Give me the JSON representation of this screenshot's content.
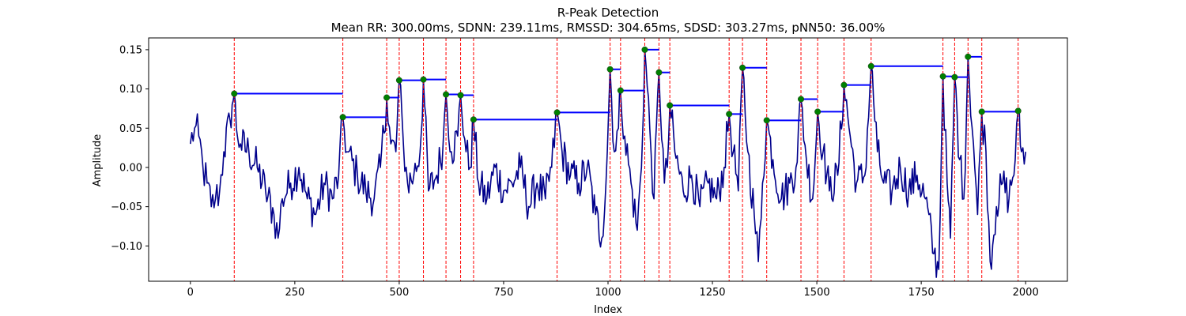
{
  "chart_data": {
    "type": "line",
    "title": "R-Peak Detection",
    "subtitle": "Mean RR: 300.00ms, SDNN: 239.11ms, RMSSD: 304.65ms, SDSD: 303.27ms, pNN50: 36.00%",
    "xlabel": "Index",
    "ylabel": "Amplitude",
    "xlim": [
      -100,
      2100
    ],
    "ylim": [
      -0.145,
      0.165
    ],
    "xticks": [
      0,
      250,
      500,
      750,
      1000,
      1250,
      1500,
      1750,
      2000
    ],
    "yticks": [
      -0.1,
      -0.05,
      0.0,
      0.05,
      0.1,
      0.15
    ],
    "grid": false,
    "colors": {
      "signal": "#00008b",
      "peak_marker": "#008000",
      "peak_line": "#ff0000",
      "rr_segment": "#0000ff"
    },
    "signal_baseline": [
      [
        0,
        0.03
      ],
      [
        10,
        0.05
      ],
      [
        20,
        0.04
      ],
      [
        30,
        0.0
      ],
      [
        40,
        -0.02
      ],
      [
        50,
        -0.05
      ],
      [
        60,
        -0.04
      ],
      [
        70,
        -0.03
      ],
      [
        80,
        0.02
      ],
      [
        95,
        0.06
      ],
      [
        100,
        0.08
      ],
      [
        105,
        0.094
      ],
      [
        110,
        0.05
      ],
      [
        120,
        0.03
      ],
      [
        140,
        0.02
      ],
      [
        160,
        0.0
      ],
      [
        180,
        -0.03
      ],
      [
        200,
        -0.06
      ],
      [
        210,
        -0.09
      ],
      [
        220,
        -0.04
      ],
      [
        240,
        -0.02
      ],
      [
        260,
        0.0
      ],
      [
        280,
        -0.04
      ],
      [
        300,
        -0.06
      ],
      [
        320,
        -0.02
      ],
      [
        340,
        -0.04
      ],
      [
        355,
        -0.01
      ],
      [
        365,
        0.064
      ],
      [
        375,
        0.02
      ],
      [
        400,
        -0.01
      ],
      [
        420,
        -0.03
      ],
      [
        440,
        -0.04
      ],
      [
        455,
        0.0
      ],
      [
        470,
        0.089
      ],
      [
        480,
        0.03
      ],
      [
        492,
        0.02
      ],
      [
        500,
        0.111
      ],
      [
        510,
        0.03
      ],
      [
        520,
        -0.02
      ],
      [
        535,
        -0.01
      ],
      [
        550,
        0.02
      ],
      [
        558,
        0.112
      ],
      [
        570,
        -0.03
      ],
      [
        590,
        -0.01
      ],
      [
        605,
        0.03
      ],
      [
        612,
        0.093
      ],
      [
        625,
        0.02
      ],
      [
        640,
        0.04
      ],
      [
        647,
        0.092
      ],
      [
        660,
        0.02
      ],
      [
        670,
        0.0
      ],
      [
        678,
        0.061
      ],
      [
        690,
        -0.02
      ],
      [
        710,
        -0.04
      ],
      [
        730,
        0.0
      ],
      [
        750,
        -0.03
      ],
      [
        770,
        -0.02
      ],
      [
        790,
        0.0
      ],
      [
        810,
        -0.05
      ],
      [
        830,
        -0.02
      ],
      [
        850,
        -0.04
      ],
      [
        865,
        0.0
      ],
      [
        878,
        0.07
      ],
      [
        890,
        0.02
      ],
      [
        910,
        -0.01
      ],
      [
        930,
        -0.02
      ],
      [
        950,
        0.0
      ],
      [
        970,
        -0.06
      ],
      [
        985,
        -0.09
      ],
      [
        995,
        -0.02
      ],
      [
        1005,
        0.125
      ],
      [
        1015,
        0.02
      ],
      [
        1025,
        0.05
      ],
      [
        1030,
        0.098
      ],
      [
        1040,
        0.04
      ],
      [
        1055,
        -0.02
      ],
      [
        1070,
        -0.08
      ],
      [
        1080,
        0.0
      ],
      [
        1088,
        0.15
      ],
      [
        1100,
        0.05
      ],
      [
        1110,
        -0.04
      ],
      [
        1122,
        0.121
      ],
      [
        1135,
        -0.02
      ],
      [
        1142,
        0.0
      ],
      [
        1148,
        0.079
      ],
      [
        1160,
        0.02
      ],
      [
        1180,
        -0.03
      ],
      [
        1200,
        -0.01
      ],
      [
        1220,
        -0.05
      ],
      [
        1240,
        -0.02
      ],
      [
        1260,
        -0.04
      ],
      [
        1278,
        0.0
      ],
      [
        1290,
        0.068
      ],
      [
        1300,
        0.02
      ],
      [
        1312,
        -0.03
      ],
      [
        1322,
        0.127
      ],
      [
        1335,
        0.02
      ],
      [
        1350,
        -0.06
      ],
      [
        1360,
        -0.12
      ],
      [
        1370,
        -0.02
      ],
      [
        1380,
        0.06
      ],
      [
        1395,
        0.01
      ],
      [
        1415,
        -0.04
      ],
      [
        1435,
        -0.02
      ],
      [
        1450,
        0.0
      ],
      [
        1462,
        0.087
      ],
      [
        1475,
        0.01
      ],
      [
        1490,
        -0.04
      ],
      [
        1502,
        0.071
      ],
      [
        1515,
        0.02
      ],
      [
        1530,
        -0.03
      ],
      [
        1550,
        -0.01
      ],
      [
        1565,
        0.105
      ],
      [
        1580,
        0.04
      ],
      [
        1595,
        -0.02
      ],
      [
        1615,
        -0.01
      ],
      [
        1630,
        0.129
      ],
      [
        1645,
        0.02
      ],
      [
        1660,
        -0.02
      ],
      [
        1680,
        -0.03
      ],
      [
        1700,
        0.0
      ],
      [
        1720,
        -0.03
      ],
      [
        1740,
        -0.01
      ],
      [
        1760,
        -0.04
      ],
      [
        1780,
        -0.11
      ],
      [
        1792,
        -0.13
      ],
      [
        1802,
        0.116
      ],
      [
        1812,
        -0.02
      ],
      [
        1820,
        -0.09
      ],
      [
        1830,
        0.115
      ],
      [
        1842,
        0.01
      ],
      [
        1852,
        -0.04
      ],
      [
        1862,
        0.141
      ],
      [
        1875,
        0.03
      ],
      [
        1885,
        -0.06
      ],
      [
        1895,
        0.071
      ],
      [
        1905,
        0.02
      ],
      [
        1915,
        -0.12
      ],
      [
        1930,
        -0.05
      ],
      [
        1945,
        -0.02
      ],
      [
        1960,
        -0.04
      ],
      [
        1975,
        0.01
      ],
      [
        1982,
        0.072
      ],
      [
        1990,
        0.02
      ],
      [
        2000,
        0.02
      ]
    ],
    "peaks": [
      {
        "x": 105,
        "y": 0.094
      },
      {
        "x": 365,
        "y": 0.064
      },
      {
        "x": 470,
        "y": 0.089
      },
      {
        "x": 500,
        "y": 0.111
      },
      {
        "x": 558,
        "y": 0.112
      },
      {
        "x": 612,
        "y": 0.093
      },
      {
        "x": 647,
        "y": 0.092
      },
      {
        "x": 678,
        "y": 0.061
      },
      {
        "x": 878,
        "y": 0.07
      },
      {
        "x": 1005,
        "y": 0.125
      },
      {
        "x": 1030,
        "y": 0.098
      },
      {
        "x": 1088,
        "y": 0.15
      },
      {
        "x": 1122,
        "y": 0.121
      },
      {
        "x": 1148,
        "y": 0.079
      },
      {
        "x": 1290,
        "y": 0.068
      },
      {
        "x": 1322,
        "y": 0.127
      },
      {
        "x": 1380,
        "y": 0.06
      },
      {
        "x": 1462,
        "y": 0.087
      },
      {
        "x": 1502,
        "y": 0.071
      },
      {
        "x": 1565,
        "y": 0.105
      },
      {
        "x": 1630,
        "y": 0.129
      },
      {
        "x": 1802,
        "y": 0.116
      },
      {
        "x": 1830,
        "y": 0.115
      },
      {
        "x": 1862,
        "y": 0.141
      },
      {
        "x": 1895,
        "y": 0.071
      },
      {
        "x": 1982,
        "y": 0.072
      }
    ],
    "rr_segments": [
      {
        "x0": 105,
        "x1": 365,
        "y": 0.094
      },
      {
        "x0": 365,
        "x1": 470,
        "y": 0.064
      },
      {
        "x0": 470,
        "x1": 500,
        "y": 0.089
      },
      {
        "x0": 500,
        "x1": 558,
        "y": 0.111
      },
      {
        "x0": 558,
        "x1": 612,
        "y": 0.112
      },
      {
        "x0": 612,
        "x1": 647,
        "y": 0.093
      },
      {
        "x0": 647,
        "x1": 678,
        "y": 0.092
      },
      {
        "x0": 678,
        "x1": 878,
        "y": 0.061
      },
      {
        "x0": 878,
        "x1": 1005,
        "y": 0.07
      },
      {
        "x0": 1005,
        "x1": 1030,
        "y": 0.125
      },
      {
        "x0": 1030,
        "x1": 1088,
        "y": 0.098
      },
      {
        "x0": 1088,
        "x1": 1122,
        "y": 0.15
      },
      {
        "x0": 1122,
        "x1": 1148,
        "y": 0.121
      },
      {
        "x0": 1148,
        "x1": 1290,
        "y": 0.079
      },
      {
        "x0": 1290,
        "x1": 1322,
        "y": 0.068
      },
      {
        "x0": 1322,
        "x1": 1380,
        "y": 0.127
      },
      {
        "x0": 1380,
        "x1": 1462,
        "y": 0.06
      },
      {
        "x0": 1462,
        "x1": 1502,
        "y": 0.087
      },
      {
        "x0": 1502,
        "x1": 1565,
        "y": 0.071
      },
      {
        "x0": 1565,
        "x1": 1630,
        "y": 0.105
      },
      {
        "x0": 1630,
        "x1": 1802,
        "y": 0.129
      },
      {
        "x0": 1802,
        "x1": 1830,
        "y": 0.116
      },
      {
        "x0": 1830,
        "x1": 1862,
        "y": 0.115
      },
      {
        "x0": 1862,
        "x1": 1895,
        "y": 0.141
      },
      {
        "x0": 1895,
        "x1": 1982,
        "y": 0.071
      }
    ]
  }
}
